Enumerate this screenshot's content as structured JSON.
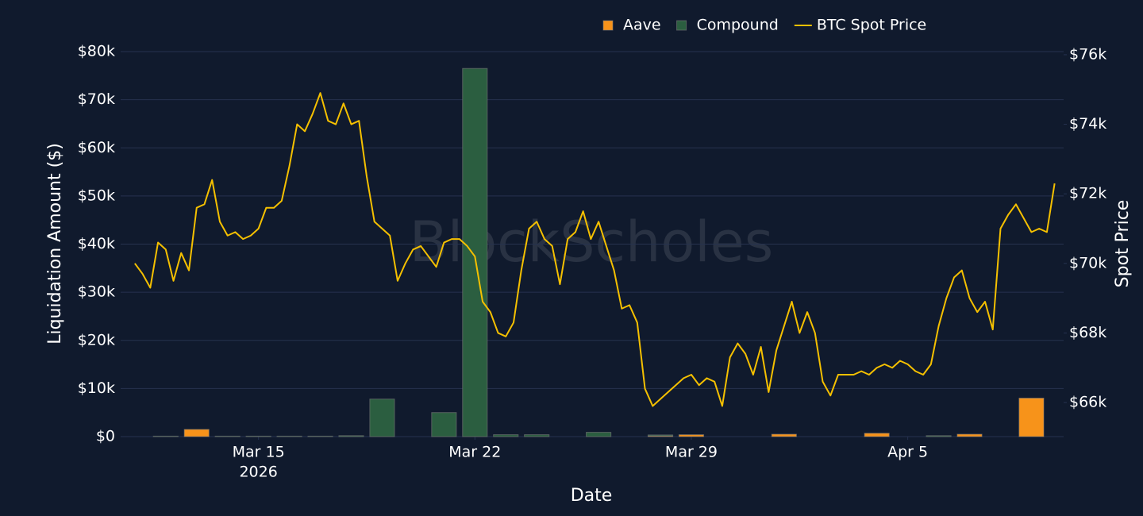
{
  "chart_data": {
    "type": "bar",
    "barmode": "stack",
    "watermark": "BlockScholes",
    "xlabel": "Date",
    "ylabel": "Liquidation Amount ($)",
    "y2label": "Spot Price",
    "xlim": [
      "2026-03-10T13:00",
      "2026-04-10T01:00"
    ],
    "xticks": [
      {
        "value": "2026-03-15T00:00",
        "label": "Mar 15"
      },
      {
        "value": "2026-03-22T00:00",
        "label": "Mar 22"
      },
      {
        "value": "2026-03-29T00:00",
        "label": "Mar 29"
      },
      {
        "value": "2026-04-05T00:00",
        "label": "Apr 5"
      }
    ],
    "x_year_label": "2026",
    "ylim": [
      0,
      80000
    ],
    "yticks": [
      {
        "value": 0,
        "label": "$0"
      },
      {
        "value": 10000,
        "label": "$10k"
      },
      {
        "value": 20000,
        "label": "$20k"
      },
      {
        "value": 30000,
        "label": "$30k"
      },
      {
        "value": 40000,
        "label": "$40k"
      },
      {
        "value": 50000,
        "label": "$50k"
      },
      {
        "value": 60000,
        "label": "$60k"
      },
      {
        "value": 70000,
        "label": "$70k"
      },
      {
        "value": 80000,
        "label": "$80k"
      }
    ],
    "y2lim": [
      65020,
      76090
    ],
    "y2ticks": [
      {
        "value": 66000,
        "label": "$66k"
      },
      {
        "value": 68000,
        "label": "$68k"
      },
      {
        "value": 70000,
        "label": "$70k"
      },
      {
        "value": 72000,
        "label": "$72k"
      },
      {
        "value": 74000,
        "label": "$74k"
      },
      {
        "value": 76000,
        "label": "$76k"
      }
    ],
    "grid": true,
    "legend": "top",
    "x": [
      "2026-03-11T00:00",
      "2026-03-12T00:00",
      "2026-03-13T00:00",
      "2026-03-14T00:00",
      "2026-03-15T00:00",
      "2026-03-16T00:00",
      "2026-03-17T00:00",
      "2026-03-18T00:00",
      "2026-03-19T00:00",
      "2026-03-20T00:00",
      "2026-03-21T00:00",
      "2026-03-22T00:00",
      "2026-03-23T00:00",
      "2026-03-24T00:00",
      "2026-03-25T00:00",
      "2026-03-26T00:00",
      "2026-03-27T00:00",
      "2026-03-28T00:00",
      "2026-03-29T00:00",
      "2026-03-30T00:00",
      "2026-03-31T00:00",
      "2026-04-01T00:00",
      "2026-04-02T00:00",
      "2026-04-03T00:00",
      "2026-04-04T00:00",
      "2026-04-05T00:00",
      "2026-04-06T00:00",
      "2026-04-07T00:00",
      "2026-04-08T00:00",
      "2026-04-09T00:00"
    ],
    "series": [
      {
        "name": "Aave",
        "type": "bar",
        "color": "#f7931a",
        "values": [
          0,
          0,
          1500,
          0,
          0,
          0,
          0,
          0,
          0,
          0,
          0,
          0,
          0,
          0,
          0,
          0,
          0,
          150,
          400,
          0,
          0,
          500,
          0,
          0,
          700,
          0,
          0,
          500,
          0,
          8000
        ]
      },
      {
        "name": "Compound",
        "type": "bar",
        "color": "#2b5e40",
        "values": [
          0,
          100,
          0,
          100,
          100,
          100,
          100,
          200,
          7800,
          0,
          5000,
          76500,
          400,
          400,
          0,
          900,
          0,
          200,
          0,
          0,
          0,
          0,
          0,
          0,
          0,
          0,
          200,
          0,
          0,
          0
        ]
      },
      {
        "name": "BTC Spot Price",
        "type": "line",
        "axis": "y2",
        "color": "#f5c000",
        "x": [
          "2026-03-11T00:00",
          "2026-03-11T06:00",
          "2026-03-11T12:00",
          "2026-03-11T18:00",
          "2026-03-12T00:00",
          "2026-03-12T06:00",
          "2026-03-12T12:00",
          "2026-03-12T18:00",
          "2026-03-13T00:00",
          "2026-03-13T06:00",
          "2026-03-13T12:00",
          "2026-03-13T18:00",
          "2026-03-14T00:00",
          "2026-03-14T06:00",
          "2026-03-14T12:00",
          "2026-03-14T18:00",
          "2026-03-15T00:00",
          "2026-03-15T06:00",
          "2026-03-15T12:00",
          "2026-03-15T18:00",
          "2026-03-16T00:00",
          "2026-03-16T06:00",
          "2026-03-16T12:00",
          "2026-03-16T18:00",
          "2026-03-17T00:00",
          "2026-03-17T06:00",
          "2026-03-17T12:00",
          "2026-03-17T18:00",
          "2026-03-18T00:00",
          "2026-03-18T06:00",
          "2026-03-18T12:00",
          "2026-03-18T18:00",
          "2026-03-19T00:00",
          "2026-03-19T06:00",
          "2026-03-19T12:00",
          "2026-03-19T18:00",
          "2026-03-20T00:00",
          "2026-03-20T06:00",
          "2026-03-20T12:00",
          "2026-03-20T18:00",
          "2026-03-21T00:00",
          "2026-03-21T06:00",
          "2026-03-21T12:00",
          "2026-03-21T18:00",
          "2026-03-22T00:00",
          "2026-03-22T06:00",
          "2026-03-22T12:00",
          "2026-03-22T18:00",
          "2026-03-23T00:00",
          "2026-03-23T06:00",
          "2026-03-23T12:00",
          "2026-03-23T18:00",
          "2026-03-24T00:00",
          "2026-03-24T06:00",
          "2026-03-24T12:00",
          "2026-03-24T18:00",
          "2026-03-25T00:00",
          "2026-03-25T06:00",
          "2026-03-25T12:00",
          "2026-03-25T18:00",
          "2026-03-26T00:00",
          "2026-03-26T06:00",
          "2026-03-26T12:00",
          "2026-03-26T18:00",
          "2026-03-27T00:00",
          "2026-03-27T06:00",
          "2026-03-27T12:00",
          "2026-03-27T18:00",
          "2026-03-28T00:00",
          "2026-03-28T06:00",
          "2026-03-28T12:00",
          "2026-03-28T18:00",
          "2026-03-29T00:00",
          "2026-03-29T06:00",
          "2026-03-29T12:00",
          "2026-03-29T18:00",
          "2026-03-30T00:00",
          "2026-03-30T06:00",
          "2026-03-30T12:00",
          "2026-03-30T18:00",
          "2026-03-31T00:00",
          "2026-03-31T06:00",
          "2026-03-31T12:00",
          "2026-03-31T18:00",
          "2026-04-01T00:00",
          "2026-04-01T06:00",
          "2026-04-01T12:00",
          "2026-04-01T18:00",
          "2026-04-02T00:00",
          "2026-04-02T06:00",
          "2026-04-02T12:00",
          "2026-04-02T18:00",
          "2026-04-03T00:00",
          "2026-04-03T06:00",
          "2026-04-03T12:00",
          "2026-04-03T18:00",
          "2026-04-04T00:00",
          "2026-04-04T06:00",
          "2026-04-04T12:00",
          "2026-04-04T18:00",
          "2026-04-05T00:00",
          "2026-04-05T06:00",
          "2026-04-05T12:00",
          "2026-04-05T18:00",
          "2026-04-06T00:00",
          "2026-04-06T06:00",
          "2026-04-06T12:00",
          "2026-04-06T18:00",
          "2026-04-07T00:00",
          "2026-04-07T06:00",
          "2026-04-07T12:00",
          "2026-04-07T18:00",
          "2026-04-08T00:00",
          "2026-04-08T06:00",
          "2026-04-08T12:00",
          "2026-04-08T18:00",
          "2026-04-09T00:00",
          "2026-04-09T06:00",
          "2026-04-09T12:00",
          "2026-04-09T18:00"
        ],
        "values": [
          70000,
          69700,
          69300,
          70600,
          70400,
          69500,
          70300,
          69800,
          71600,
          71700,
          72400,
          71200,
          70800,
          70900,
          70700,
          70800,
          71000,
          71600,
          71600,
          71800,
          72800,
          74000,
          73800,
          74300,
          74900,
          74100,
          74000,
          74600,
          74000,
          74100,
          72500,
          71200,
          71000,
          70800,
          69500,
          70000,
          70400,
          70500,
          70200,
          69900,
          70600,
          70700,
          70700,
          70500,
          70200,
          68900,
          68600,
          68000,
          67900,
          68300,
          69800,
          71000,
          71200,
          70700,
          70500,
          69400,
          70700,
          70900,
          71500,
          70700,
          71200,
          70500,
          69800,
          68700,
          68800,
          68300,
          66400,
          65900,
          66100,
          66300,
          66500,
          66700,
          66800,
          66500,
          66700,
          66600,
          65900,
          67300,
          67700,
          67400,
          66800,
          67600,
          66300,
          67500,
          68200,
          68900,
          68000,
          68600,
          68000,
          66600,
          66200,
          66800,
          66800,
          66800,
          66900,
          66800,
          67000,
          67100,
          67000,
          67200,
          67100,
          66900,
          66800,
          67100,
          68200,
          69000,
          69600,
          69800,
          69000,
          68600,
          68900,
          68100,
          71000,
          71400,
          71700,
          71300,
          70900,
          71000,
          70900,
          72300
        ]
      }
    ]
  }
}
